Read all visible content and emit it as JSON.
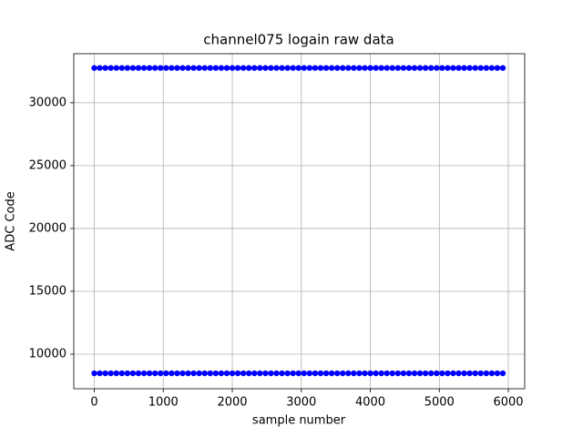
{
  "chart_data": {
    "type": "scatter",
    "title": "channel075 logain raw data",
    "x_label": "sample number",
    "y_label": "ADC Code",
    "x": [
      0,
      80,
      160,
      240,
      320,
      400,
      480,
      560,
      640,
      720,
      800,
      880,
      960,
      1040,
      1120,
      1200,
      1280,
      1360,
      1440,
      1520,
      1600,
      1680,
      1760,
      1840,
      1920,
      2000,
      2080,
      2160,
      2240,
      2320,
      2400,
      2480,
      2560,
      2640,
      2720,
      2800,
      2880,
      2960,
      3040,
      3120,
      3200,
      3280,
      3360,
      3440,
      3520,
      3600,
      3680,
      3760,
      3840,
      3920,
      4000,
      4080,
      4160,
      4240,
      4320,
      4400,
      4480,
      4560,
      4640,
      4720,
      4800,
      4880,
      4960,
      5040,
      5120,
      5200,
      5280,
      5360,
      5440,
      5520,
      5600,
      5680,
      5760,
      5840,
      5920
    ],
    "series": [
      {
        "color": "#0000ff",
        "values": [
          32767,
          32767,
          32767,
          32767,
          32767,
          32767,
          32767,
          32767,
          32767,
          32767,
          32767,
          32767,
          32767,
          32767,
          32767,
          32767,
          32767,
          32767,
          32767,
          32767,
          32767,
          32767,
          32767,
          32767,
          32767,
          32767,
          32767,
          32767,
          32767,
          32767,
          32767,
          32767,
          32767,
          32767,
          32767,
          32767,
          32767,
          32767,
          32767,
          32767,
          32767,
          32767,
          32767,
          32767,
          32767,
          32767,
          32767,
          32767,
          32767,
          32767,
          32767,
          32767,
          32767,
          32767,
          32767,
          32767,
          32767,
          32767,
          32767,
          32767,
          32767,
          32767,
          32767,
          32767,
          32767,
          32767,
          32767,
          32767,
          32767,
          32767,
          32767,
          32767,
          32767,
          32767,
          32767
        ]
      },
      {
        "color": "#0000ff",
        "values": [
          8480,
          8480,
          8480,
          8480,
          8480,
          8480,
          8480,
          8480,
          8480,
          8480,
          8480,
          8480,
          8480,
          8480,
          8480,
          8480,
          8480,
          8480,
          8480,
          8480,
          8480,
          8480,
          8480,
          8480,
          8480,
          8480,
          8480,
          8480,
          8480,
          8480,
          8480,
          8480,
          8480,
          8480,
          8480,
          8480,
          8480,
          8480,
          8480,
          8480,
          8480,
          8480,
          8480,
          8480,
          8480,
          8480,
          8480,
          8480,
          8480,
          8480,
          8480,
          8480,
          8480,
          8480,
          8480,
          8480,
          8480,
          8480,
          8480,
          8480,
          8480,
          8480,
          8480,
          8480,
          8480,
          8480,
          8480,
          8480,
          8480,
          8480,
          8480,
          8480,
          8480,
          8480,
          8480
        ]
      }
    ],
    "xlim": [
      -297,
      6237
    ],
    "xticks": [
      0,
      1000,
      2000,
      3000,
      4000,
      5000,
      6000
    ],
    "ylim": [
      7250,
      33900
    ],
    "yticks": [
      10000,
      15000,
      20000,
      25000,
      30000
    ],
    "grid": true
  }
}
